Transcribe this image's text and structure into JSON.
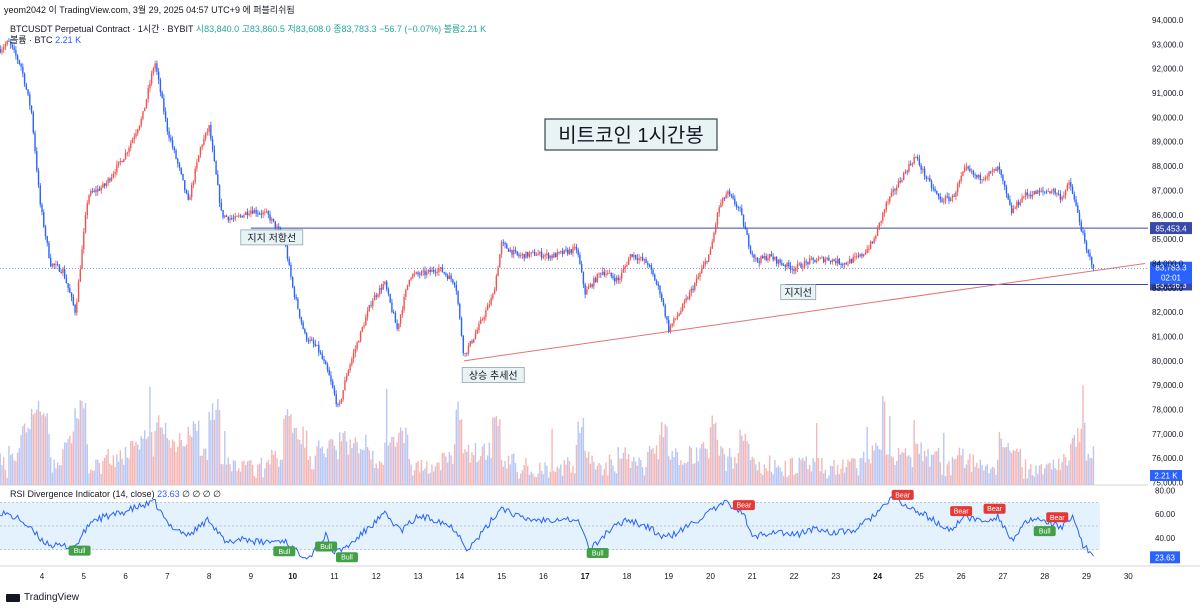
{
  "header": {
    "text": "yeom2042 이 TradingView.com, 3월 29, 2025 04:57 UTC+9 에 퍼블리쉬됨"
  },
  "symbol": {
    "title": "BTCUSDT Perpetual Contract · 1시간 · BYBIT",
    "ohlc": "시83,840.0  고83,860.5  저83,608.0  종83,783.3  −56.7 (−0.07%)  볼륨2.21 K"
  },
  "volume_legend": {
    "label": "볼륨 · BTC",
    "value": "2.21 K"
  },
  "rsi_legend": {
    "label": "RSI Divergence Indicator (14, close)",
    "value": "23.63",
    "extra": "∅ ∅ ∅ ∅"
  },
  "footer": {
    "brand": "TradingView"
  },
  "colors": {
    "up": "#ef5350",
    "down": "#2962ff",
    "trend": "#e57373",
    "hline": "#3949ab",
    "rsi": "#2962ff",
    "bull": "#43a047",
    "bear": "#e53935",
    "band": "#e3f2fd"
  },
  "chart_data": {
    "type": "candlestick",
    "title": "비트코인 1시간봉",
    "y_axis_ticks": [
      "94,000.0",
      "93,000.0",
      "92,000.0",
      "91,000.0",
      "90,000.0",
      "89,000.0",
      "88,000.0",
      "87,000.0",
      "86,000.0",
      "85,000.0",
      "84,000.0",
      "83,000.0",
      "82,000.0",
      "81,000.0",
      "80,000.0",
      "79,000.0",
      "78,000.0",
      "77,000.0",
      "76,000.0",
      "75,000.0"
    ],
    "ylim": [
      74900,
      94000
    ],
    "x_axis_ticks": [
      "4",
      "5",
      "6",
      "7",
      "8",
      "9",
      "10",
      "11",
      "12",
      "13",
      "14",
      "15",
      "16",
      "17",
      "18",
      "19",
      "20",
      "21",
      "22",
      "23",
      "24",
      "25",
      "26",
      "27",
      "28",
      "29",
      "30"
    ],
    "price_keypoints": [
      {
        "day": 3.0,
        "price": 92800
      },
      {
        "day": 3.2,
        "price": 93100
      },
      {
        "day": 3.5,
        "price": 92100
      },
      {
        "day": 3.75,
        "price": 90200
      },
      {
        "day": 3.95,
        "price": 86500
      },
      {
        "day": 4.2,
        "price": 84000
      },
      {
        "day": 4.5,
        "price": 83700
      },
      {
        "day": 4.8,
        "price": 82000
      },
      {
        "day": 5.1,
        "price": 86800
      },
      {
        "day": 5.5,
        "price": 87200
      },
      {
        "day": 6.0,
        "price": 88500
      },
      {
        "day": 6.4,
        "price": 90000
      },
      {
        "day": 6.7,
        "price": 92300
      },
      {
        "day": 7.0,
        "price": 89500
      },
      {
        "day": 7.3,
        "price": 87800
      },
      {
        "day": 7.5,
        "price": 86500
      },
      {
        "day": 7.8,
        "price": 88800
      },
      {
        "day": 8.0,
        "price": 89600
      },
      {
        "day": 8.3,
        "price": 86000
      },
      {
        "day": 8.6,
        "price": 85800
      },
      {
        "day": 9.0,
        "price": 86200
      },
      {
        "day": 9.4,
        "price": 86000
      },
      {
        "day": 9.8,
        "price": 85000
      },
      {
        "day": 10.0,
        "price": 83000
      },
      {
        "day": 10.3,
        "price": 81000
      },
      {
        "day": 10.6,
        "price": 80500
      },
      {
        "day": 10.85,
        "price": 79500
      },
      {
        "day": 11.1,
        "price": 78000
      },
      {
        "day": 11.3,
        "price": 79500
      },
      {
        "day": 11.6,
        "price": 81000
      },
      {
        "day": 11.9,
        "price": 82500
      },
      {
        "day": 12.2,
        "price": 83200
      },
      {
        "day": 12.5,
        "price": 81300
      },
      {
        "day": 12.8,
        "price": 83500
      },
      {
        "day": 13.2,
        "price": 83600
      },
      {
        "day": 13.5,
        "price": 83800
      },
      {
        "day": 13.9,
        "price": 83200
      },
      {
        "day": 14.1,
        "price": 80200
      },
      {
        "day": 14.4,
        "price": 81200
      },
      {
        "day": 14.8,
        "price": 82700
      },
      {
        "day": 15.0,
        "price": 84800
      },
      {
        "day": 15.4,
        "price": 84300
      },
      {
        "day": 15.8,
        "price": 84400
      },
      {
        "day": 16.2,
        "price": 84300
      },
      {
        "day": 16.8,
        "price": 84600
      },
      {
        "day": 17.0,
        "price": 82800
      },
      {
        "day": 17.4,
        "price": 83700
      },
      {
        "day": 17.8,
        "price": 83300
      },
      {
        "day": 18.1,
        "price": 84400
      },
      {
        "day": 18.5,
        "price": 84000
      },
      {
        "day": 18.8,
        "price": 82800
      },
      {
        "day": 19.0,
        "price": 81300
      },
      {
        "day": 19.3,
        "price": 82100
      },
      {
        "day": 19.7,
        "price": 83400
      },
      {
        "day": 20.0,
        "price": 84500
      },
      {
        "day": 20.2,
        "price": 86300
      },
      {
        "day": 20.4,
        "price": 86900
      },
      {
        "day": 20.7,
        "price": 86200
      },
      {
        "day": 20.95,
        "price": 84600
      },
      {
        "day": 21.1,
        "price": 84100
      },
      {
        "day": 21.4,
        "price": 84300
      },
      {
        "day": 21.7,
        "price": 84000
      },
      {
        "day": 22.0,
        "price": 83800
      },
      {
        "day": 22.4,
        "price": 84100
      },
      {
        "day": 22.8,
        "price": 84200
      },
      {
        "day": 23.2,
        "price": 84000
      },
      {
        "day": 23.6,
        "price": 84300
      },
      {
        "day": 23.9,
        "price": 84900
      },
      {
        "day": 24.2,
        "price": 86400
      },
      {
        "day": 24.6,
        "price": 87600
      },
      {
        "day": 24.9,
        "price": 88400
      },
      {
        "day": 25.2,
        "price": 87400
      },
      {
        "day": 25.5,
        "price": 86600
      },
      {
        "day": 25.8,
        "price": 86700
      },
      {
        "day": 26.1,
        "price": 87900
      },
      {
        "day": 26.4,
        "price": 87500
      },
      {
        "day": 26.7,
        "price": 87700
      },
      {
        "day": 26.9,
        "price": 87900
      },
      {
        "day": 27.2,
        "price": 86100
      },
      {
        "day": 27.5,
        "price": 86800
      },
      {
        "day": 27.8,
        "price": 86900
      },
      {
        "day": 28.2,
        "price": 87000
      },
      {
        "day": 28.4,
        "price": 86700
      },
      {
        "day": 28.6,
        "price": 87300
      },
      {
        "day": 28.8,
        "price": 86000
      },
      {
        "day": 29.0,
        "price": 84500
      },
      {
        "day": 29.2,
        "price": 83783
      }
    ],
    "lines": [
      {
        "kind": "horizontal",
        "price": 85453.4,
        "from_day": 9.0,
        "to_day": 29.2,
        "label": "85,453.4"
      },
      {
        "kind": "horizontal",
        "price": 83136.3,
        "from_day": 21.8,
        "to_day": 29.2,
        "label": "83,136.3"
      },
      {
        "kind": "trend",
        "start": {
          "day": 14.1,
          "price": 80000
        },
        "end": {
          "day": 30.4,
          "price": 84000
        }
      }
    ],
    "current_price": {
      "value": "83,783.3",
      "countdown": "02:01"
    },
    "annotations": [
      {
        "text": "지지 저항선",
        "day": 9.5,
        "price": 85050
      },
      {
        "text": "상승 추세선",
        "day": 14.8,
        "price": 79400
      },
      {
        "text": "지지선",
        "day": 22.1,
        "price": 82800
      }
    ],
    "volume": {
      "last_label": "2.21 K"
    },
    "rsi": {
      "ylim": [
        18,
        82
      ],
      "band": [
        30,
        70
      ],
      "ticks": [
        "80.00",
        "60.00",
        "40.00"
      ],
      "last_label": "23.63",
      "keypoints": [
        {
          "day": 3.0,
          "rsi": 62
        },
        {
          "day": 3.5,
          "rsi": 55
        },
        {
          "day": 4.0,
          "rsi": 38
        },
        {
          "day": 4.3,
          "rsi": 33
        },
        {
          "day": 4.8,
          "rsi": 33
        },
        {
          "day": 5.2,
          "rsi": 55
        },
        {
          "day": 5.8,
          "rsi": 60
        },
        {
          "day": 6.3,
          "rsi": 66
        },
        {
          "day": 6.7,
          "rsi": 70
        },
        {
          "day": 7.0,
          "rsi": 52
        },
        {
          "day": 7.5,
          "rsi": 42
        },
        {
          "day": 8.0,
          "rsi": 56
        },
        {
          "day": 8.4,
          "rsi": 35
        },
        {
          "day": 8.8,
          "rsi": 40
        },
        {
          "day": 9.2,
          "rsi": 36
        },
        {
          "day": 9.8,
          "rsi": 38
        },
        {
          "day": 10.1,
          "rsi": 28
        },
        {
          "day": 10.4,
          "rsi": 24
        },
        {
          "day": 10.8,
          "rsi": 42
        },
        {
          "day": 11.0,
          "rsi": 27
        },
        {
          "day": 11.4,
          "rsi": 35
        },
        {
          "day": 11.8,
          "rsi": 48
        },
        {
          "day": 12.2,
          "rsi": 60
        },
        {
          "day": 12.6,
          "rsi": 46
        },
        {
          "day": 13.0,
          "rsi": 58
        },
        {
          "day": 13.5,
          "rsi": 55
        },
        {
          "day": 13.9,
          "rsi": 47
        },
        {
          "day": 14.2,
          "rsi": 30
        },
        {
          "day": 14.6,
          "rsi": 47
        },
        {
          "day": 15.0,
          "rsi": 66
        },
        {
          "day": 15.5,
          "rsi": 56
        },
        {
          "day": 16.0,
          "rsi": 55
        },
        {
          "day": 16.5,
          "rsi": 57
        },
        {
          "day": 16.9,
          "rsi": 52
        },
        {
          "day": 17.1,
          "rsi": 29
        },
        {
          "day": 17.5,
          "rsi": 44
        },
        {
          "day": 18.0,
          "rsi": 56
        },
        {
          "day": 18.5,
          "rsi": 49
        },
        {
          "day": 18.9,
          "rsi": 40
        },
        {
          "day": 19.2,
          "rsi": 44
        },
        {
          "day": 19.6,
          "rsi": 53
        },
        {
          "day": 20.0,
          "rsi": 62
        },
        {
          "day": 20.4,
          "rsi": 70
        },
        {
          "day": 20.8,
          "rsi": 60
        },
        {
          "day": 21.0,
          "rsi": 40
        },
        {
          "day": 21.5,
          "rsi": 46
        },
        {
          "day": 22.0,
          "rsi": 42
        },
        {
          "day": 22.5,
          "rsi": 48
        },
        {
          "day": 23.0,
          "rsi": 44
        },
        {
          "day": 23.5,
          "rsi": 47
        },
        {
          "day": 24.0,
          "rsi": 62
        },
        {
          "day": 24.4,
          "rsi": 74
        },
        {
          "day": 24.7,
          "rsi": 66
        },
        {
          "day": 25.2,
          "rsi": 58
        },
        {
          "day": 25.7,
          "rsi": 46
        },
        {
          "day": 26.1,
          "rsi": 58
        },
        {
          "day": 26.5,
          "rsi": 54
        },
        {
          "day": 26.9,
          "rsi": 58
        },
        {
          "day": 27.2,
          "rsi": 38
        },
        {
          "day": 27.6,
          "rsi": 54
        },
        {
          "day": 28.0,
          "rsi": 55
        },
        {
          "day": 28.4,
          "rsi": 48
        },
        {
          "day": 28.7,
          "rsi": 58
        },
        {
          "day": 28.9,
          "rsi": 35
        },
        {
          "day": 29.2,
          "rsi": 23.6
        }
      ],
      "signals": [
        {
          "type": "Bull",
          "day": 4.9
        },
        {
          "type": "Bull",
          "day": 9.8
        },
        {
          "type": "Bull",
          "day": 10.8
        },
        {
          "type": "Bull",
          "day": 11.3
        },
        {
          "type": "Bull",
          "day": 17.3
        },
        {
          "type": "Bear",
          "day": 20.8
        },
        {
          "type": "Bear",
          "day": 24.6
        },
        {
          "type": "Bear",
          "day": 26.0
        },
        {
          "type": "Bear",
          "day": 26.8
        },
        {
          "type": "Bull",
          "day": 28.0
        },
        {
          "type": "Bear",
          "day": 28.3
        }
      ]
    }
  }
}
